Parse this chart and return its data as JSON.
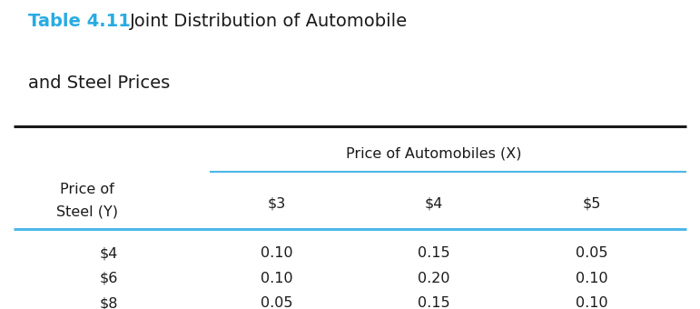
{
  "title_bold": "Table 4.11",
  "title_rest_line1": "Joint Distribution of Automobile",
  "title_rest_line2": "and Steel Prices",
  "title_color": "#29ABE2",
  "title_rest_color": "#1a1a1a",
  "col_header_label": "Price of Automobiles (X)",
  "row_header_line1": "Price of",
  "row_header_line2": "Steel (Y)",
  "col_subheaders": [
    "$3",
    "$4",
    "$5"
  ],
  "row_labels": [
    "$4",
    "$6",
    "$8"
  ],
  "data": [
    [
      0.1,
      0.15,
      0.05
    ],
    [
      0.1,
      0.2,
      0.1
    ],
    [
      0.05,
      0.15,
      0.1
    ]
  ],
  "background_color": "#ffffff",
  "line_color_thick": "#1a1a1a",
  "line_color_blue": "#4db8e8",
  "text_color": "#1a1a1a",
  "font_size_title_bold": 14,
  "font_size_title_rest": 14,
  "font_size_body": 11.5
}
